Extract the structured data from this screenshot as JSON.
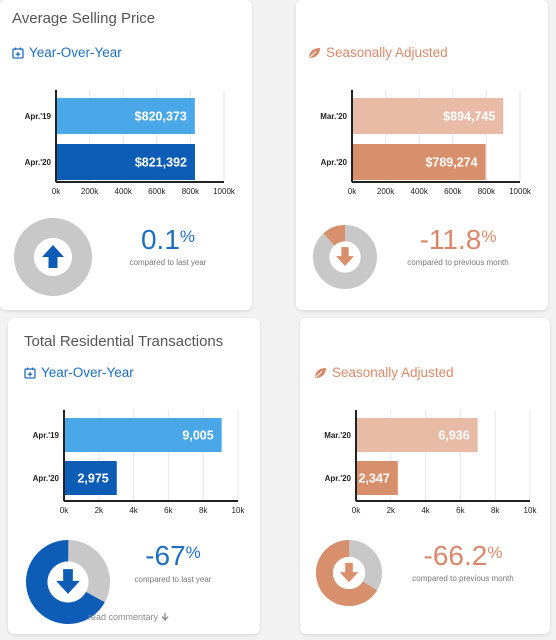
{
  "cards": [
    {
      "title": "Average Selling Price",
      "subtitle": "Year-Over-Year",
      "subtitle_style": "blue",
      "big_value": "0.1",
      "big_unit": "%",
      "caption": "compared to last year",
      "direction": "up",
      "donut_fraction": 0.001
    },
    {
      "title": "",
      "subtitle": "Seasonally Adjusted",
      "subtitle_style": "orange",
      "big_value": "-11.8",
      "big_unit": "%",
      "caption": "compared to previous month",
      "direction": "down",
      "donut_fraction": 0.118
    },
    {
      "title": "Total Residential Transactions",
      "subtitle": "Year-Over-Year",
      "subtitle_style": "blue",
      "big_value": "-67",
      "big_unit": "%",
      "caption": "compared to last year",
      "direction": "down",
      "donut_fraction": 0.67
    },
    {
      "title": "",
      "subtitle": "Seasonally Adjusted",
      "subtitle_style": "orange",
      "big_value": "-66.2",
      "big_unit": "%",
      "caption": "compared to previous month",
      "direction": "down",
      "donut_fraction": 0.662
    }
  ],
  "colors": {
    "blue_text": "#1e6fc2",
    "blue_light": "#4aa8e8",
    "blue_dark": "#0d5cb5",
    "orange_text": "#d9896a",
    "orange_light": "#e8bba6",
    "orange_dark": "#d78f6c",
    "grey": "#c8c8c8"
  },
  "read_more": "read commentary",
  "chart_data": [
    {
      "type": "bar",
      "orientation": "horizontal",
      "categories": [
        "Apr.'19",
        "Apr.'20"
      ],
      "values": [
        820373,
        821392
      ],
      "value_labels": [
        "$820,373",
        "$821,392"
      ],
      "xlim": [
        0,
        1000000
      ],
      "x_ticks": [
        "0k",
        "200k",
        "400k",
        "600k",
        "800k",
        "1000k"
      ],
      "colors": [
        "#4aa8e8",
        "#0d5cb5"
      ]
    },
    {
      "type": "bar",
      "orientation": "horizontal",
      "categories": [
        "Mar.'20",
        "Apr.'20"
      ],
      "values": [
        894745,
        789274
      ],
      "value_labels": [
        "$894,745",
        "$789,274"
      ],
      "xlim": [
        0,
        1000000
      ],
      "x_ticks": [
        "0k",
        "200k",
        "400k",
        "600k",
        "800k",
        "1000k"
      ],
      "colors": [
        "#e8bba6",
        "#d78f6c"
      ]
    },
    {
      "type": "bar",
      "orientation": "horizontal",
      "categories": [
        "Apr.'19",
        "Apr.'20"
      ],
      "values": [
        9005,
        2975
      ],
      "value_labels": [
        "9,005",
        "2,975"
      ],
      "xlim": [
        0,
        10000
      ],
      "x_ticks": [
        "0k",
        "2k",
        "4k",
        "6k",
        "8k",
        "10k"
      ],
      "colors": [
        "#4aa8e8",
        "#0d5cb5"
      ]
    },
    {
      "type": "bar",
      "orientation": "horizontal",
      "categories": [
        "Mar.'20",
        "Apr.'20"
      ],
      "values": [
        6936,
        2347
      ],
      "value_labels": [
        "6,936",
        "2,347"
      ],
      "xlim": [
        0,
        10000
      ],
      "x_ticks": [
        "0k",
        "2k",
        "4k",
        "6k",
        "8k",
        "10k"
      ],
      "colors": [
        "#e8bba6",
        "#d78f6c"
      ]
    }
  ]
}
